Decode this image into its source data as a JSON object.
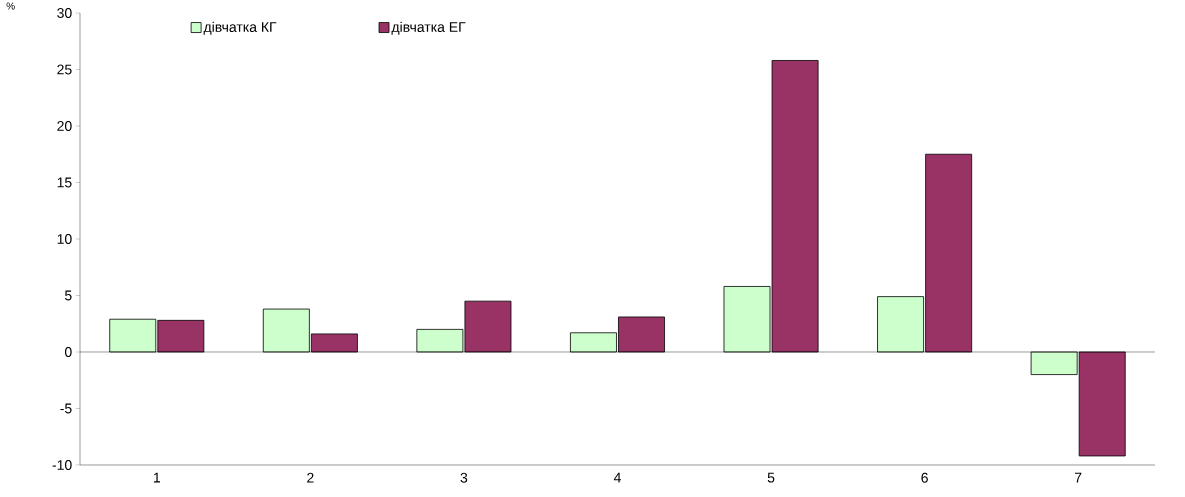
{
  "chart_data": {
    "type": "bar",
    "ylabel": "%",
    "categories": [
      "1",
      "2",
      "3",
      "4",
      "5",
      "6",
      "7"
    ],
    "series": [
      {
        "name": "дівчатка КГ",
        "color": "#ccffcc",
        "values": [
          2.9,
          3.8,
          2.0,
          1.7,
          5.8,
          4.9,
          -2.0
        ]
      },
      {
        "name": "дівчатка ЕГ",
        "color": "#993366",
        "values": [
          2.8,
          1.6,
          4.5,
          3.1,
          25.8,
          17.5,
          -9.2
        ]
      }
    ],
    "ylim": [
      -10,
      30
    ],
    "yticks": [
      -10,
      -5,
      0,
      5,
      10,
      15,
      20,
      25,
      30
    ],
    "ref_lines": [
      {
        "axis": "y",
        "value": 0,
        "color": "#000000"
      }
    ],
    "legend": "top left",
    "grid": false
  }
}
